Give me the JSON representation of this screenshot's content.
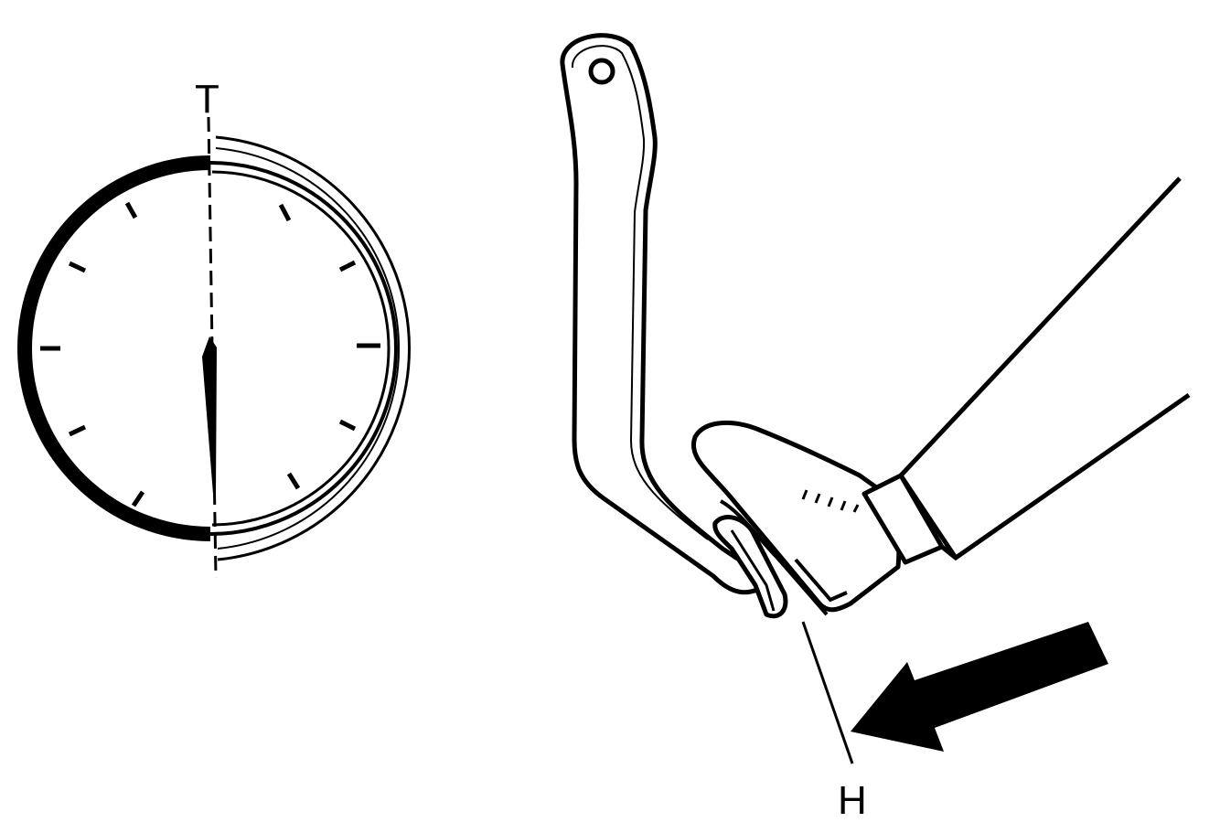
{
  "labels": {
    "top_mark": "T",
    "pedal_mark": "H"
  },
  "colors": {
    "ink": "#000000",
    "paper": "#ffffff"
  },
  "icons": {
    "gauge": "dial-gauge-icon",
    "pedal": "brake-pedal-icon",
    "foot": "shoe-icon",
    "arrow": "press-direction-arrow-icon"
  }
}
